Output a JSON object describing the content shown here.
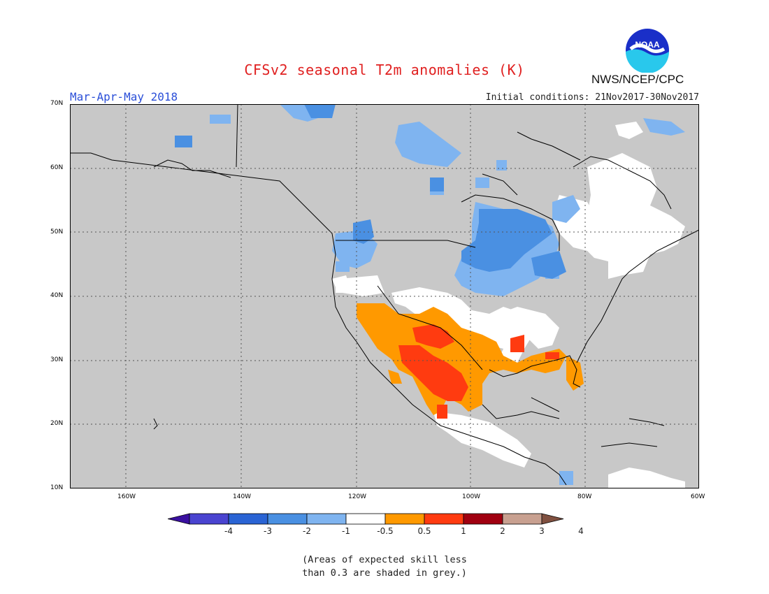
{
  "header": {
    "title": "CFSv2 seasonal T2m anomalies (K)",
    "season": "Mar-Apr-May 2018",
    "initial_conditions": "Initial conditions: 21Nov2017-30Nov2017",
    "agency": "NWS/NCEP/CPC",
    "logo_text": "NOAA"
  },
  "map": {
    "lat_labels": [
      "70N",
      "60N",
      "50N",
      "40N",
      "30N",
      "20N",
      "10N"
    ],
    "lon_labels": [
      "160W",
      "140W",
      "120W",
      "100W",
      "80W",
      "60W"
    ],
    "grid": true,
    "colors": {
      "ocean_land_masked": "#c8c8c8",
      "neutral": "#ffffff",
      "cold_1": "#7fb4f0",
      "cold_2": "#4a90e2",
      "warm_1": "#ff9900",
      "warm_2": "#ff3b10",
      "coast": "#000000"
    }
  },
  "legend": {
    "labels": [
      "-4",
      "-3",
      "-2",
      "-1",
      "-0.5",
      "0.5",
      "1",
      "2",
      "3",
      "4"
    ],
    "colors": [
      "#3a10a0",
      "#4a44d0",
      "#2a64d4",
      "#4a90e2",
      "#7fb4f0",
      "#ffffff",
      "#ff9900",
      "#ff3b10",
      "#a00010",
      "#c8a090",
      "#805040"
    ]
  },
  "footnote": {
    "line1": "(Areas of expected skill less",
    "line2": "than 0.3 are shaded in grey.)"
  }
}
